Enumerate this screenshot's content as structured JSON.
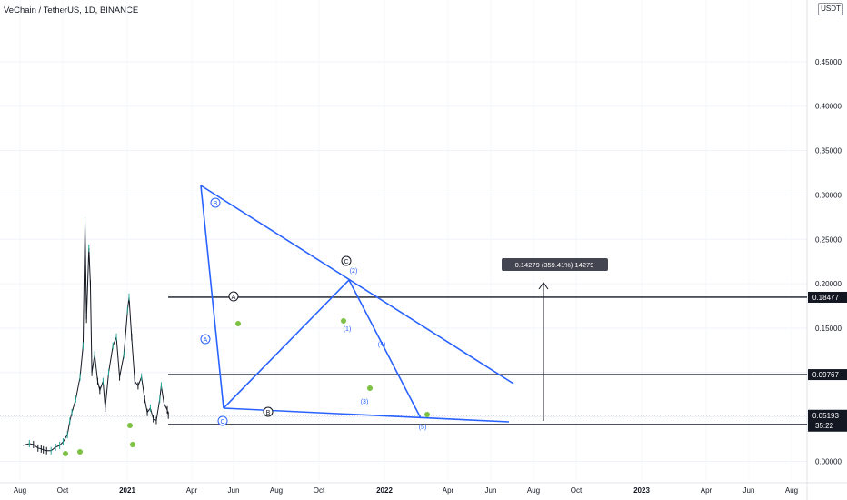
{
  "chart_title": "VeChain / TetherUS, 1D, BINANCE",
  "unit_badge": "USDT",
  "chart_data": {
    "type": "line",
    "title": "VeChain / TetherUS, 1D, BINANCE",
    "y_unit": "USDT",
    "ylim": [
      -0.02,
      0.46
    ],
    "y_ticks": [
      "0.45000",
      "0.40000",
      "0.35000",
      "0.30000",
      "0.25000",
      "0.20000",
      "0.15000",
      "0.10000",
      "0.05000",
      "0.00000"
    ],
    "x_ticks": [
      "Aug",
      "Oct",
      "2021",
      "Apr",
      "Jun",
      "Aug",
      "Oct",
      "2022",
      "Apr",
      "Jun",
      "Aug",
      "Oct",
      "2023",
      "Apr",
      "Jun",
      "Aug"
    ],
    "series": [
      {
        "values": [
          [
            "2020-07-01",
            0.018
          ],
          [
            "2020-08-01",
            0.02
          ],
          [
            "2020-08-20",
            0.019
          ],
          [
            "2020-09-10",
            0.015
          ],
          [
            "2020-09-25",
            0.014
          ],
          [
            "2020-10-05",
            0.013
          ],
          [
            "2020-10-20",
            0.012
          ],
          [
            "2020-11-10",
            0.012
          ],
          [
            "2020-12-01",
            0.016
          ],
          [
            "2020-12-20",
            0.018
          ],
          [
            "2021-01-05",
            0.022
          ],
          [
            "2021-01-25",
            0.03
          ],
          [
            "2021-02-05",
            0.045
          ],
          [
            "2021-02-15",
            0.055
          ],
          [
            "2021-03-05",
            0.07
          ],
          [
            "2021-03-25",
            0.095
          ],
          [
            "2021-04-08",
            0.13
          ],
          [
            "2021-04-17",
            0.27
          ],
          [
            "2021-04-24",
            0.16
          ],
          [
            "2021-05-05",
            0.24
          ],
          [
            "2021-05-12",
            0.2
          ],
          [
            "2021-05-19",
            0.1
          ],
          [
            "2021-06-01",
            0.12
          ],
          [
            "2021-06-15",
            0.09
          ],
          [
            "2021-06-25",
            0.08
          ],
          [
            "2021-07-10",
            0.09
          ],
          [
            "2021-07-20",
            0.06
          ],
          [
            "2021-08-05",
            0.1
          ],
          [
            "2021-08-25",
            0.13
          ],
          [
            "2021-09-10",
            0.14
          ],
          [
            "2021-09-25",
            0.095
          ],
          [
            "2021-10-15",
            0.12
          ],
          [
            "2021-11-01",
            0.17
          ],
          [
            "2021-11-08",
            0.185
          ],
          [
            "2021-11-20",
            0.14
          ],
          [
            "2021-12-05",
            0.09
          ],
          [
            "2021-12-20",
            0.085
          ],
          [
            "2022-01-05",
            0.095
          ],
          [
            "2022-01-20",
            0.07
          ],
          [
            "2022-02-01",
            0.055
          ],
          [
            "2022-02-15",
            0.06
          ],
          [
            "2022-03-01",
            0.048
          ],
          [
            "2022-03-15",
            0.046
          ],
          [
            "2022-03-31",
            0.07
          ],
          [
            "2022-04-07",
            0.085
          ],
          [
            "2022-04-20",
            0.065
          ],
          [
            "2022-05-05",
            0.058
          ],
          [
            "2022-05-10",
            0.052
          ]
        ]
      }
    ],
    "reference_levels": [
      {
        "label": "0.18477",
        "value": 0.18477
      },
      {
        "label": "0.09767",
        "value": 0.09767
      },
      {
        "label": "0.04148",
        "value": 0.04148
      }
    ],
    "last_price": {
      "label": "0.05193",
      "value": 0.05193,
      "countdown": "35:22"
    },
    "measure_label": "0.14279 (359.41%) 14279",
    "wave_labels": [
      "B",
      "A",
      "C",
      "(2)",
      "(1)",
      "(4)",
      "(3)",
      "B",
      "C",
      "(5)",
      "A"
    ],
    "colors": {
      "trendline": "#2962ff",
      "level": "#131722",
      "bull": "#26a69a",
      "marker": "#7cc142"
    }
  }
}
